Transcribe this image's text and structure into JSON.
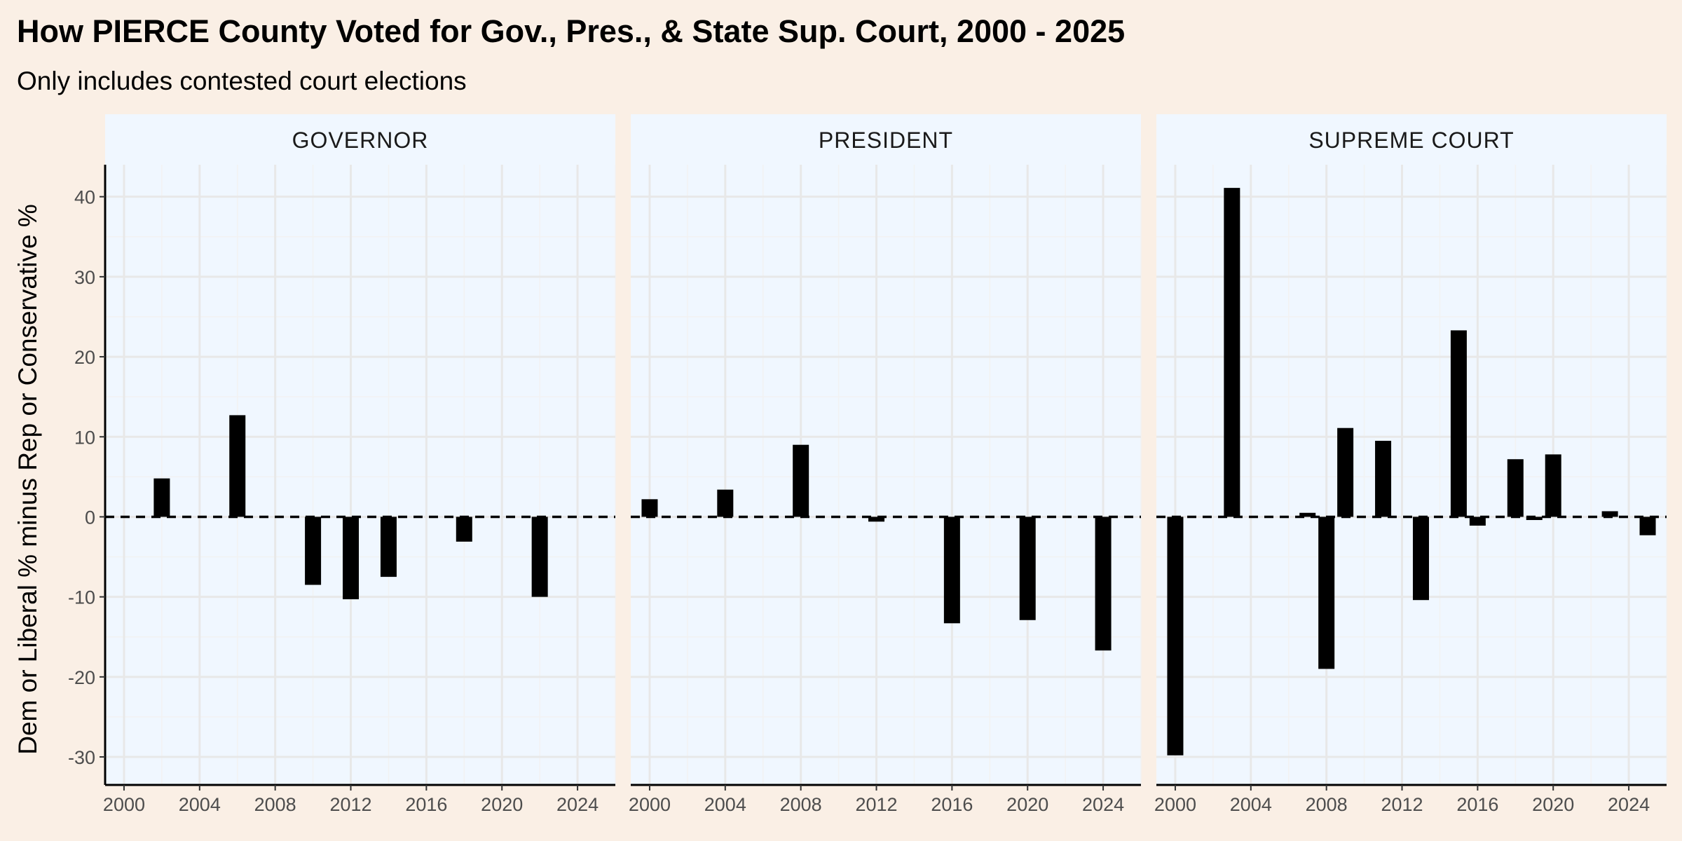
{
  "chart_data": {
    "type": "bar",
    "title": "How PIERCE County Voted for Gov., Pres., & State Sup. Court, 2000 - 2025",
    "subtitle": "Only includes contested court elections",
    "ylabel": "Dem or Liberal % minus Rep or Conservative %",
    "xlim": [
      1999,
      2026
    ],
    "ylim": [
      -33.5,
      44
    ],
    "x_ticks": [
      2000,
      2004,
      2008,
      2012,
      2016,
      2020,
      2024
    ],
    "y_ticks": [
      -30,
      -20,
      -10,
      0,
      10,
      20,
      30,
      40
    ],
    "reference_line": {
      "y": 0,
      "style": "dashed"
    },
    "grid": true,
    "legend": "none",
    "panels": [
      {
        "name": "GOVERNOR",
        "data": [
          {
            "x": 2002,
            "y": 4.8
          },
          {
            "x": 2006,
            "y": 12.7
          },
          {
            "x": 2010,
            "y": -8.5
          },
          {
            "x": 2012,
            "y": -10.3
          },
          {
            "x": 2014,
            "y": -7.5
          },
          {
            "x": 2018,
            "y": -3.1
          },
          {
            "x": 2022,
            "y": -10.0
          }
        ]
      },
      {
        "name": "PRESIDENT",
        "data": [
          {
            "x": 2000,
            "y": 2.2
          },
          {
            "x": 2004,
            "y": 3.4
          },
          {
            "x": 2008,
            "y": 9.0
          },
          {
            "x": 2012,
            "y": -0.6
          },
          {
            "x": 2016,
            "y": -13.3
          },
          {
            "x": 2020,
            "y": -12.9
          },
          {
            "x": 2024,
            "y": -16.7
          }
        ]
      },
      {
        "name": "SUPREME COURT",
        "data": [
          {
            "x": 2000,
            "y": -29.8
          },
          {
            "x": 2003,
            "y": 41.1
          },
          {
            "x": 2007,
            "y": 0.5
          },
          {
            "x": 2008,
            "y": -19.0
          },
          {
            "x": 2009,
            "y": 11.1
          },
          {
            "x": 2011,
            "y": 9.5
          },
          {
            "x": 2013,
            "y": -10.4
          },
          {
            "x": 2015,
            "y": 23.3
          },
          {
            "x": 2016,
            "y": -1.1
          },
          {
            "x": 2018,
            "y": 7.2
          },
          {
            "x": 2019,
            "y": -0.4
          },
          {
            "x": 2020,
            "y": 7.8
          },
          {
            "x": 2023,
            "y": 0.7
          },
          {
            "x": 2025,
            "y": -2.3
          }
        ]
      }
    ]
  },
  "colors": {
    "page_background": "#faefe5",
    "panel_background": "#f0f7ff",
    "grid_major": "#e8e8e8",
    "grid_minor": "#f2f2f2",
    "bars": "#000000"
  }
}
